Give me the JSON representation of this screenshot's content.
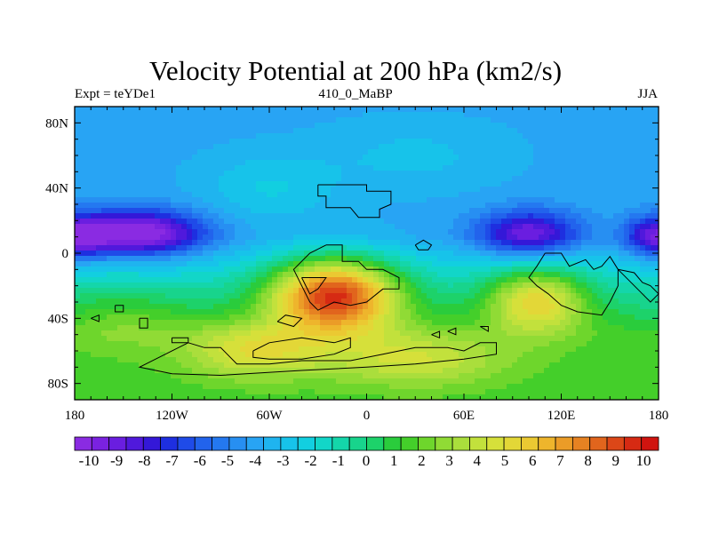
{
  "title": "Velocity Potential at 200 hPa (km2/s)",
  "subtitle_left": "Expt = teYDe1",
  "subtitle_center": "410_0_MaBP",
  "subtitle_right": "JJA",
  "lat_labels": [
    "80N",
    "40N",
    "0",
    "40S",
    "80S"
  ],
  "lat_values": [
    80,
    40,
    0,
    -40,
    -80
  ],
  "lon_labels": [
    "180",
    "120W",
    "60W",
    "0",
    "60E",
    "120E",
    "180"
  ],
  "lon_values": [
    -180,
    -120,
    -60,
    0,
    60,
    120,
    180
  ],
  "colorbar": {
    "labels": [
      "-10",
      "-9",
      "-8",
      "-7",
      "-6",
      "-5",
      "-4",
      "-3",
      "-2",
      "-1",
      "0",
      "1",
      "2",
      "3",
      "4",
      "5",
      "6",
      "7",
      "8",
      "9",
      "10"
    ],
    "colors": [
      "#8a2be2",
      "#7a22e0",
      "#6a1ee0",
      "#5019dc",
      "#3418d8",
      "#1e2fe0",
      "#1f4be8",
      "#2263ec",
      "#2478f0",
      "#278ff2",
      "#28a4f4",
      "#1fb4ef",
      "#17c3ea",
      "#12cfe0",
      "#12d6c8",
      "#14d6aa",
      "#18d48c",
      "#1dd26a",
      "#2acc3c",
      "#44cf2a",
      "#6ed62c",
      "#90db35",
      "#aade3c",
      "#c2e13c",
      "#d6e03a",
      "#e3d737",
      "#ebc932",
      "#eeb52c",
      "#eb9c27",
      "#e68222",
      "#e1651d",
      "#dc4718",
      "#d62a13",
      "#d0140f"
    ]
  },
  "fields": {
    "centers": [
      {
        "lon": -140,
        "lat": 12,
        "amp": -7.2,
        "sx": 28,
        "sy": 10
      },
      {
        "lon": 100,
        "lat": 12,
        "amp": -5.5,
        "sx": 22,
        "sy": 10
      },
      {
        "lon": 180,
        "lat": 10,
        "amp": -6.0,
        "sx": 14,
        "sy": 9
      },
      {
        "lon": -180,
        "lat": 10,
        "amp": -5.0,
        "sx": 14,
        "sy": 9
      },
      {
        "lon": -20,
        "lat": -25,
        "amp": 10.5,
        "sx": 28,
        "sy": 16
      },
      {
        "lon": 105,
        "lat": -28,
        "amp": 6.0,
        "sx": 22,
        "sy": 14
      },
      {
        "lon": -70,
        "lat": -60,
        "amp": 3.5,
        "sx": 30,
        "sy": 12
      },
      {
        "lon": 30,
        "lat": -65,
        "amp": 3.0,
        "sx": 40,
        "sy": 12
      },
      {
        "lon": -150,
        "lat": -40,
        "amp": 1.5,
        "sx": 30,
        "sy": 15
      },
      {
        "lon": -60,
        "lat": 40,
        "amp": 1.5,
        "sx": 30,
        "sy": 15
      },
      {
        "lon": 30,
        "lat": 60,
        "amp": 1.0,
        "sx": 40,
        "sy": 15
      }
    ],
    "base": -4.0,
    "southern_rise": 5.5
  }
}
